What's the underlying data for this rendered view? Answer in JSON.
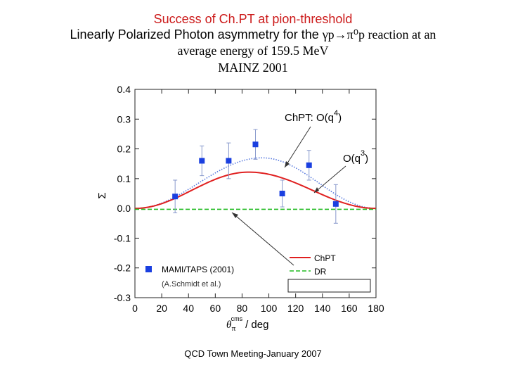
{
  "slide": {
    "title": "Success of Ch.PT at pion-threshold",
    "subtitle_prefix": "Linearly Polarized Photon asymmetry for the ",
    "reaction": "γp→π⁰p",
    "subtitle_suffix": " reaction at an",
    "subtitle_line2": "average energy of 159.5 MeV",
    "subtitle_line3": "MAINZ 2001",
    "footer": "QCD Town Meeting-January 2007",
    "colors": {
      "title": "#cc1a1a",
      "chpt": "#e02020",
      "dr": "#22bb22",
      "data": "#1a3fe0",
      "chpt_q4": "#5577dd"
    }
  },
  "chart_data": {
    "type": "scatter",
    "xlabel": "θπ cms / deg",
    "xlabel_main": "θ",
    "xlabel_sub": "π",
    "xlabel_sup": "cms",
    "xlabel_unit": "/ deg",
    "ylabel": "Σ",
    "xlim": [
      0,
      180
    ],
    "ylim": [
      -0.3,
      0.4
    ],
    "xticks": [
      0,
      20,
      40,
      60,
      80,
      100,
      120,
      140,
      160,
      180
    ],
    "yticks": [
      0.4,
      0.3,
      0.2,
      0.1,
      0.0,
      -0.1,
      -0.2,
      -0.3
    ],
    "ytick_labels": [
      "0.4",
      "0.3",
      "0.2",
      "0.1",
      "0.0",
      "-0.1",
      "-0.2",
      "-0.3"
    ],
    "series": [
      {
        "name": "MAMI/TAPS (2001)",
        "kind": "points",
        "x": [
          30,
          50,
          70,
          90,
          110,
          130,
          150
        ],
        "y": [
          0.04,
          0.16,
          0.16,
          0.215,
          0.05,
          0.145,
          0.015
        ],
        "err": [
          0.055,
          0.05,
          0.06,
          0.05,
          0.045,
          0.05,
          0.065
        ]
      },
      {
        "name": "ChPT",
        "kind": "line",
        "peak": 0.122
      },
      {
        "name": "DR",
        "kind": "line",
        "value": -0.003
      },
      {
        "name": "ChPT: O(q4)",
        "kind": "line",
        "peak": 0.17
      }
    ],
    "annotations": {
      "q4_base": "ChPT: O(q",
      "q4_sup": "4",
      "q4_close": ")",
      "q3_base": "O(q",
      "q3_sup": "3",
      "q3_close": ")"
    },
    "legend": {
      "chpt": "ChPT",
      "dr": "DR",
      "data": "MAMI/TAPS (2001)",
      "data_sub": "(A.Schmidt et al.)"
    }
  }
}
